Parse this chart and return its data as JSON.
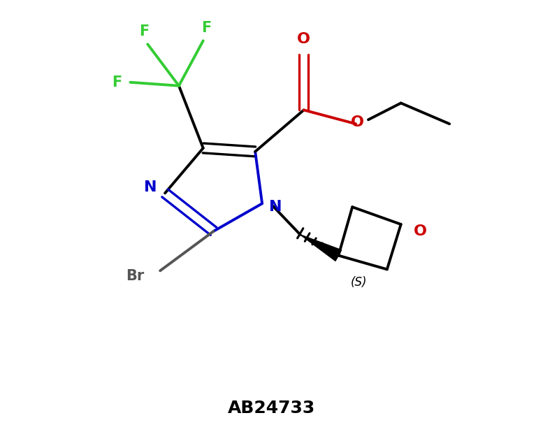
{
  "title": "AB24733",
  "title_fontsize": 18,
  "title_fontweight": "bold",
  "bg_color": "#ffffff",
  "atom_colors": {
    "C": "#000000",
    "N": "#0000cc",
    "O": "#cc0000",
    "F": "#33cc33",
    "Br": "#555555"
  },
  "figsize": [
    7.77,
    6.31
  ],
  "dpi": 100
}
